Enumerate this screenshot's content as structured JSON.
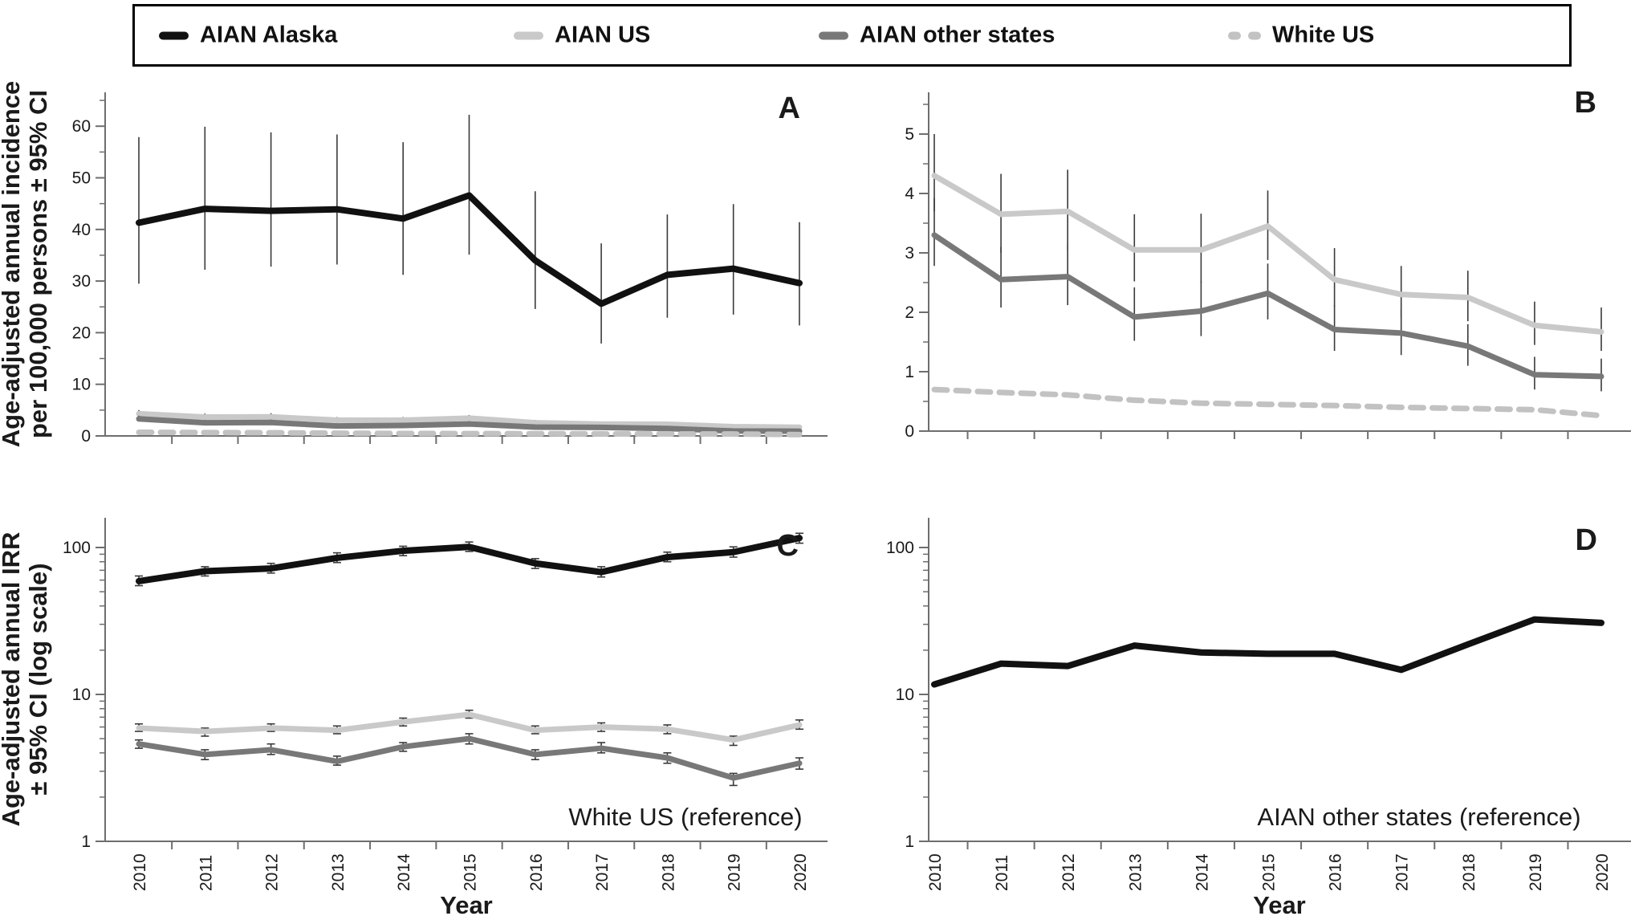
{
  "figure": {
    "background": "#ffffff",
    "colors": {
      "aian_alaska": "#111111",
      "aian_us": "#c9c9c9",
      "aian_other": "#787878",
      "white_us": "#c2c2c2",
      "axis": "#6e6e6e",
      "error_bar": "#3a3a3a",
      "text": "#1a1a1a"
    }
  },
  "legend": {
    "items": [
      {
        "label": "AIAN Alaska",
        "color_key": "aian_alaska",
        "style": "solid"
      },
      {
        "label": "AIAN US",
        "color_key": "aian_us",
        "style": "solid"
      },
      {
        "label": "AIAN other states",
        "color_key": "aian_other",
        "style": "solid"
      },
      {
        "label": "White US",
        "color_key": "white_us",
        "style": "dashed"
      }
    ]
  },
  "axis_titles": {
    "top_row_y": [
      "Age-adjusted annual incidence",
      "per 100,000 persons ± 95% CI"
    ],
    "bottom_row_y": [
      "Age-adjusted annual IRR",
      "± 95% CI (log scale)"
    ],
    "x": "Year"
  },
  "years": [
    "2010",
    "2011",
    "2012",
    "2013",
    "2014",
    "2015",
    "2016",
    "2017",
    "2018",
    "2019",
    "2020"
  ],
  "chart_data": [
    {
      "panel": "A",
      "panel_label": "A",
      "type": "line",
      "yscale": "linear",
      "ylim": [
        0,
        66
      ],
      "yticks": [
        0,
        10,
        20,
        30,
        40,
        50,
        60
      ],
      "y_minor_step": 5,
      "ci_caps": false,
      "annotation": null,
      "xlabel": "",
      "series": [
        {
          "name": "AIAN Alaska",
          "color_key": "aian_alaska",
          "dash": false,
          "width": 8,
          "values": [
            41.3,
            44.0,
            43.6,
            43.9,
            42.1,
            46.6,
            34.0,
            25.6,
            31.2,
            32.4,
            29.6
          ],
          "ci_lo": [
            29.5,
            32.2,
            32.8,
            33.2,
            31.2,
            35.1,
            24.6,
            17.9,
            22.9,
            23.5,
            21.4
          ],
          "ci_hi": [
            57.9,
            59.9,
            58.8,
            58.4,
            56.9,
            62.2,
            47.4,
            37.3,
            42.9,
            44.9,
            41.4
          ]
        },
        {
          "name": "AIAN US",
          "color_key": "aian_us",
          "dash": false,
          "width": 7,
          "values": [
            4.3,
            3.65,
            3.7,
            3.05,
            3.05,
            3.45,
            2.55,
            2.3,
            2.25,
            1.78,
            1.67
          ],
          "ci_lo": [
            3.7,
            3.0,
            3.05,
            2.52,
            2.5,
            2.88,
            2.1,
            1.92,
            1.85,
            1.45,
            1.35
          ],
          "ci_hi": [
            5.0,
            4.33,
            4.4,
            3.65,
            3.66,
            4.05,
            3.08,
            2.78,
            2.7,
            2.18,
            2.08
          ]
        },
        {
          "name": "AIAN other states",
          "color_key": "aian_other",
          "dash": false,
          "width": 7,
          "values": [
            3.3,
            2.55,
            2.6,
            1.92,
            2.02,
            2.32,
            1.71,
            1.65,
            1.43,
            0.95,
            0.92
          ],
          "ci_lo": [
            2.78,
            2.08,
            2.12,
            1.52,
            1.6,
            1.88,
            1.35,
            1.28,
            1.1,
            0.7,
            0.67
          ],
          "ci_hi": [
            3.92,
            3.1,
            3.15,
            2.42,
            2.52,
            2.82,
            2.12,
            2.05,
            1.8,
            1.25,
            1.22
          ]
        },
        {
          "name": "White US",
          "color_key": "white_us",
          "dash": true,
          "width": 7,
          "values": [
            0.7,
            0.65,
            0.61,
            0.52,
            0.47,
            0.45,
            0.43,
            0.4,
            0.38,
            0.36,
            0.26
          ]
        }
      ]
    },
    {
      "panel": "B",
      "panel_label": "B",
      "type": "line",
      "yscale": "linear",
      "ylim": [
        0,
        5.7
      ],
      "yticks": [
        0,
        1,
        2,
        3,
        4,
        5
      ],
      "y_minor_step": 0.5,
      "ci_caps": false,
      "annotation": null,
      "xlabel": "",
      "series": [
        {
          "name": "AIAN US",
          "color_key": "aian_us",
          "dash": false,
          "width": 7,
          "values": [
            4.3,
            3.65,
            3.7,
            3.05,
            3.05,
            3.45,
            2.55,
            2.3,
            2.25,
            1.78,
            1.67
          ],
          "ci_lo": [
            3.7,
            3.0,
            3.05,
            2.52,
            2.5,
            2.88,
            2.1,
            1.92,
            1.85,
            1.45,
            1.35
          ],
          "ci_hi": [
            5.0,
            4.33,
            4.4,
            3.65,
            3.66,
            4.05,
            3.08,
            2.78,
            2.7,
            2.18,
            2.08
          ]
        },
        {
          "name": "AIAN other states",
          "color_key": "aian_other",
          "dash": false,
          "width": 7,
          "values": [
            3.3,
            2.55,
            2.6,
            1.92,
            2.02,
            2.32,
            1.71,
            1.65,
            1.43,
            0.95,
            0.92
          ],
          "ci_lo": [
            2.78,
            2.08,
            2.12,
            1.52,
            1.6,
            1.88,
            1.35,
            1.28,
            1.1,
            0.7,
            0.67
          ],
          "ci_hi": [
            3.92,
            3.1,
            3.15,
            2.42,
            2.52,
            2.82,
            2.12,
            2.05,
            1.8,
            1.25,
            1.22
          ]
        },
        {
          "name": "White US",
          "color_key": "white_us",
          "dash": true,
          "width": 7,
          "values": [
            0.7,
            0.65,
            0.61,
            0.52,
            0.47,
            0.45,
            0.43,
            0.4,
            0.38,
            0.36,
            0.26
          ]
        }
      ]
    },
    {
      "panel": "C",
      "panel_label": "C",
      "type": "line",
      "yscale": "log",
      "ylim": [
        1,
        150
      ],
      "yticks": [
        1,
        10,
        100
      ],
      "ci_caps": true,
      "annotation": "White US (reference)",
      "xlabel": "Year",
      "series": [
        {
          "name": "AIAN Alaska",
          "color_key": "aian_alaska",
          "dash": false,
          "width": 8,
          "values": [
            59,
            69,
            72,
            85,
            95,
            101,
            78,
            68,
            86,
            93,
            116
          ],
          "ci_lo": [
            55,
            64,
            67,
            79,
            88,
            94,
            72,
            63,
            80,
            86,
            107
          ],
          "ci_hi": [
            64,
            74,
            78,
            92,
            102,
            109,
            84,
            74,
            93,
            101,
            125
          ]
        },
        {
          "name": "AIAN US",
          "color_key": "aian_us",
          "dash": false,
          "width": 7,
          "values": [
            5.9,
            5.6,
            5.9,
            5.7,
            6.5,
            7.3,
            5.7,
            6.0,
            5.8,
            4.9,
            6.2
          ],
          "ci_lo": [
            5.6,
            5.2,
            5.6,
            5.4,
            6.1,
            6.9,
            5.4,
            5.6,
            5.4,
            4.5,
            5.8
          ],
          "ci_hi": [
            6.3,
            5.9,
            6.3,
            6.1,
            6.9,
            7.8,
            6.1,
            6.4,
            6.2,
            5.2,
            6.7
          ]
        },
        {
          "name": "AIAN other states",
          "color_key": "aian_other",
          "dash": false,
          "width": 7,
          "values": [
            4.6,
            3.9,
            4.2,
            3.5,
            4.4,
            5.0,
            3.9,
            4.3,
            3.7,
            2.7,
            3.4
          ],
          "ci_lo": [
            4.3,
            3.6,
            3.9,
            3.3,
            4.1,
            4.6,
            3.6,
            4.0,
            3.4,
            2.4,
            3.1
          ],
          "ci_hi": [
            4.9,
            4.2,
            4.6,
            3.8,
            4.7,
            5.4,
            4.2,
            4.7,
            4.0,
            2.9,
            3.7
          ]
        }
      ]
    },
    {
      "panel": "D",
      "panel_label": "D",
      "type": "line",
      "yscale": "log",
      "ylim": [
        1,
        150
      ],
      "yticks": [
        1,
        10,
        100
      ],
      "ci_caps": false,
      "annotation": "AIAN other states (reference)",
      "xlabel": "Year",
      "series": [
        {
          "name": "AIAN Alaska",
          "color_key": "aian_alaska",
          "dash": false,
          "width": 8,
          "values": [
            11.7,
            16.2,
            15.6,
            21.5,
            19.3,
            18.9,
            18.9,
            14.7,
            21.9,
            32.4,
            30.7
          ]
        }
      ]
    }
  ]
}
